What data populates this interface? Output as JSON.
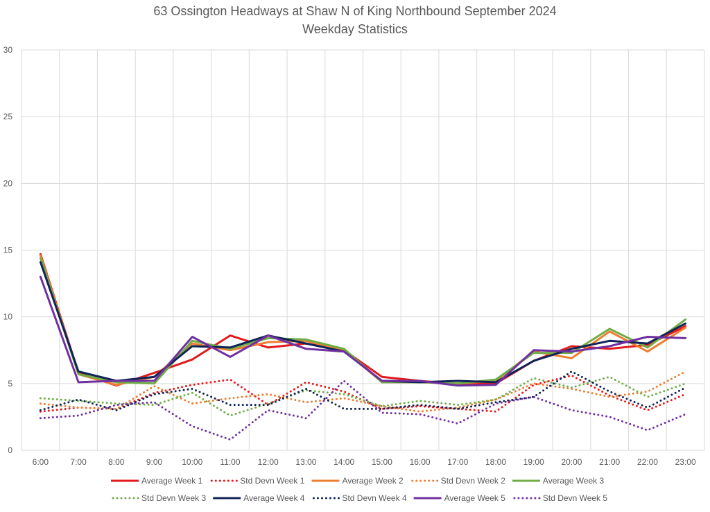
{
  "chart_data": {
    "type": "line",
    "title": "63 Ossington Headways at Shaw N of King Northbound September 2024",
    "subtitle": "Weekday Statistics",
    "xlabel": "",
    "ylabel": "",
    "ylim": [
      0,
      30
    ],
    "yticks": [
      "0",
      "5",
      "10",
      "15",
      "20",
      "25",
      "30"
    ],
    "grid": true,
    "legend_position": "bottom",
    "categories": [
      "6:00",
      "7:00",
      "8:00",
      "9:00",
      "10:00",
      "11:00",
      "12:00",
      "13:00",
      "14:00",
      "15:00",
      "16:00",
      "17:00",
      "18:00",
      "19:00",
      "20:00",
      "21:00",
      "22:00",
      "23:00"
    ],
    "series": [
      {
        "name": "Average Week 1",
        "color": "#e31a1c",
        "style": "solid",
        "values": [
          14.7,
          5.8,
          4.85,
          5.8,
          6.8,
          8.6,
          7.7,
          8.0,
          7.5,
          5.5,
          5.2,
          4.95,
          5.0,
          6.7,
          7.8,
          7.6,
          7.9,
          9.3
        ]
      },
      {
        "name": "Std Devn Week 1",
        "color": "#e31a1c",
        "style": "dotted",
        "values": [
          2.9,
          3.2,
          3.1,
          4.3,
          4.9,
          5.3,
          3.4,
          5.1,
          4.4,
          3.1,
          3.3,
          3.1,
          2.9,
          4.9,
          5.6,
          4.1,
          3.0,
          4.2
        ]
      },
      {
        "name": "Average Week 2",
        "color": "#ed7d31",
        "style": "solid",
        "values": [
          14.6,
          5.7,
          4.9,
          5.5,
          8.0,
          7.5,
          8.1,
          8.2,
          7.5,
          5.1,
          5.1,
          5.0,
          5.2,
          7.4,
          6.9,
          8.9,
          7.4,
          9.2
        ]
      },
      {
        "name": "Std Devn Week 2",
        "color": "#ed7d31",
        "style": "dotted",
        "values": [
          3.5,
          3.2,
          3.1,
          4.8,
          3.5,
          3.9,
          4.2,
          3.6,
          3.9,
          3.3,
          2.9,
          3.2,
          3.8,
          5.0,
          4.6,
          4.0,
          4.4,
          5.9
        ]
      },
      {
        "name": "Average Week 3",
        "color": "#70ad47",
        "style": "solid",
        "values": [
          14.4,
          5.7,
          5.1,
          5.0,
          8.2,
          7.6,
          8.4,
          8.3,
          7.6,
          5.1,
          5.1,
          5.0,
          5.3,
          7.3,
          7.3,
          9.1,
          7.7,
          9.8
        ]
      },
      {
        "name": "Std Devn Week 3",
        "color": "#70ad47",
        "style": "dotted",
        "values": [
          3.9,
          3.7,
          3.5,
          3.4,
          4.3,
          2.6,
          3.5,
          4.5,
          4.2,
          3.3,
          3.7,
          3.4,
          3.8,
          5.4,
          4.7,
          5.5,
          4.0,
          5.0
        ]
      },
      {
        "name": "Average Week 4",
        "color": "#0f2456",
        "style": "solid",
        "values": [
          14.1,
          5.9,
          5.2,
          5.5,
          7.8,
          7.7,
          8.6,
          8.0,
          7.4,
          5.2,
          5.1,
          5.2,
          5.1,
          6.7,
          7.6,
          8.2,
          8.0,
          9.5
        ]
      },
      {
        "name": "Std Devn Week 4",
        "color": "#0f2456",
        "style": "dotted",
        "values": [
          3.0,
          3.8,
          3.0,
          4.2,
          4.6,
          3.4,
          3.4,
          4.6,
          3.1,
          3.1,
          3.4,
          3.1,
          3.6,
          4.0,
          5.9,
          4.4,
          3.2,
          4.7
        ]
      },
      {
        "name": "Average Week 5",
        "color": "#7030a0",
        "style": "solid",
        "values": [
          13.0,
          5.1,
          5.2,
          5.2,
          8.5,
          7.0,
          8.6,
          7.6,
          7.4,
          5.2,
          5.2,
          4.85,
          4.9,
          7.5,
          7.4,
          7.8,
          8.5,
          8.4
        ]
      },
      {
        "name": "Std Devn Week 5",
        "color": "#7030a0",
        "style": "dotted",
        "values": [
          2.4,
          2.6,
          3.4,
          3.6,
          1.8,
          0.8,
          3.0,
          2.4,
          5.2,
          2.8,
          2.7,
          2.0,
          3.5,
          4.0,
          3.0,
          2.5,
          1.5,
          2.7
        ]
      }
    ]
  }
}
